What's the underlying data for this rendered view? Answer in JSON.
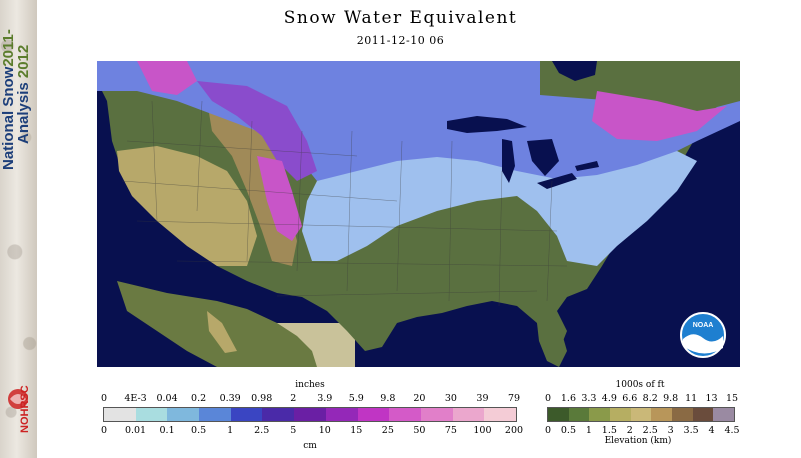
{
  "banner": {
    "line1": "National Snow",
    "year1": "2011-",
    "line2": "Analysis",
    "year2": "2012",
    "logo_text": "NOHRSC"
  },
  "header": {
    "title": "Snow Water Equivalent",
    "date": "2011-12-10 06"
  },
  "map": {
    "logo_text": "NOAA",
    "colors": {
      "ocean": "#08104f",
      "canada": "#c9c29a",
      "lowland_green": "#5a7040",
      "snow_light": "#9fc0ee",
      "snow_mid": "#6e82e0",
      "snow_purple": "#8a4ccc",
      "snow_magenta": "#c855c8",
      "mountain_tan": "#b7a86a"
    }
  },
  "swe_legend": {
    "top_unit": "inches",
    "bottom_unit": "cm",
    "inch_ticks": [
      "0",
      "4E-3",
      "0.04",
      "0.2",
      "0.39",
      "0.98",
      "2",
      "3.9",
      "5.9",
      "9.8",
      "20",
      "30",
      "39",
      "79"
    ],
    "cm_ticks": [
      "0",
      "0.01",
      "0.1",
      "0.5",
      "1",
      "2.5",
      "5",
      "10",
      "15",
      "25",
      "50",
      "75",
      "100",
      "200"
    ],
    "colors": [
      "#e3e3e3",
      "#a9dde0",
      "#7fb8dd",
      "#5a86d8",
      "#3a45c2",
      "#4a2aa8",
      "#6a1fa4",
      "#9428b8",
      "#c035c4",
      "#d45ac8",
      "#e17fc9",
      "#eba7cd",
      "#f4ccd6"
    ]
  },
  "elev_legend": {
    "top_unit": "1000s of ft",
    "bottom_unit": "Elevation (km)",
    "ft_ticks": [
      "0",
      "1.6",
      "3.3",
      "4.9",
      "6.6",
      "8.2",
      "9.8",
      "11",
      "13",
      "15"
    ],
    "km_ticks": [
      "0",
      "0.5",
      "1",
      "1.5",
      "2",
      "2.5",
      "3",
      "3.5",
      "4",
      "4.5"
    ],
    "colors": [
      "#3c5a2a",
      "#5a7a3a",
      "#8a9a4a",
      "#b6ae62",
      "#cab878",
      "#b8965a",
      "#8a6a44",
      "#6a4c3c",
      "#9a8aa2"
    ]
  }
}
